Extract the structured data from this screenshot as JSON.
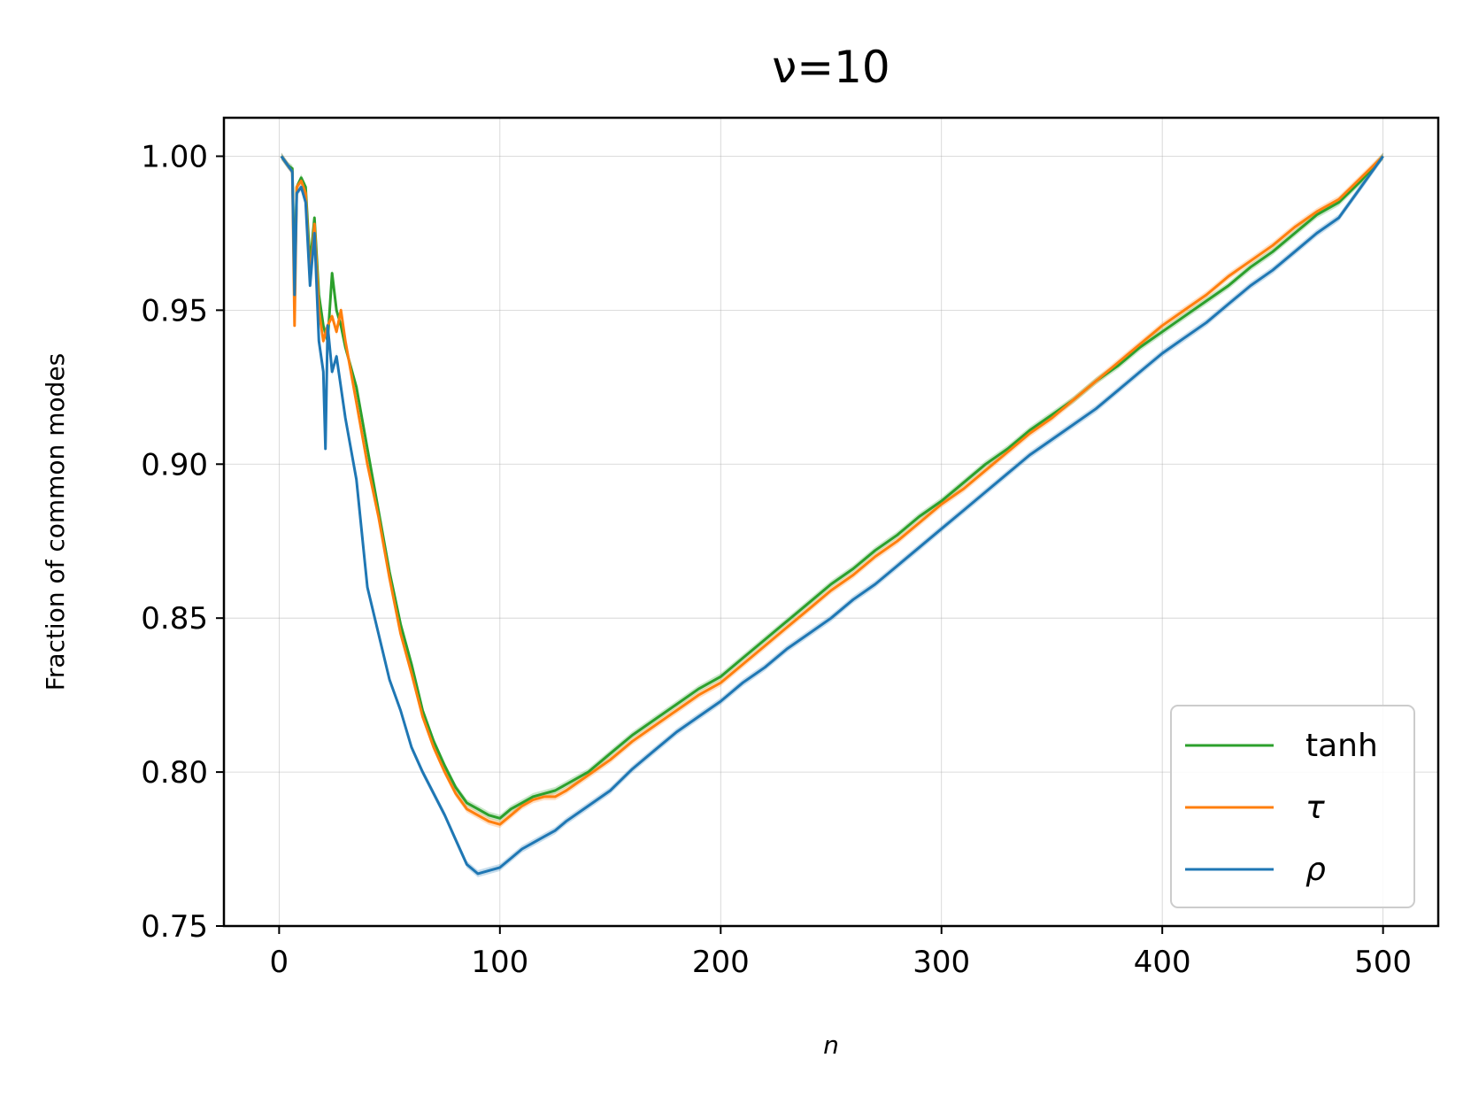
{
  "chart_data": {
    "type": "line",
    "title": "ν=10",
    "xlabel": "n",
    "ylabel": "Fraction of common modes",
    "xlim": [
      -25,
      525
    ],
    "ylim": [
      0.75,
      1.0125
    ],
    "xticks": [
      0,
      100,
      200,
      300,
      400,
      500
    ],
    "yticks": [
      0.75,
      0.8,
      0.85,
      0.9,
      0.95,
      1.0
    ],
    "xtick_labels": [
      "0",
      "100",
      "200",
      "300",
      "400",
      "500"
    ],
    "ytick_labels": [
      "0.75",
      "0.80",
      "0.85",
      "0.90",
      "0.95",
      "1.00"
    ],
    "grid": true,
    "legend_position": "lower-right",
    "series": [
      {
        "name": "tanh",
        "color": "#2ca02c",
        "points": [
          [
            1,
            1.0
          ],
          [
            4,
            0.997
          ],
          [
            6,
            0.996
          ],
          [
            7,
            0.96
          ],
          [
            8,
            0.99
          ],
          [
            10,
            0.993
          ],
          [
            12,
            0.99
          ],
          [
            14,
            0.965
          ],
          [
            16,
            0.98
          ],
          [
            18,
            0.955
          ],
          [
            20,
            0.945
          ],
          [
            22,
            0.94
          ],
          [
            24,
            0.962
          ],
          [
            26,
            0.95
          ],
          [
            28,
            0.945
          ],
          [
            30,
            0.938
          ],
          [
            35,
            0.925
          ],
          [
            40,
            0.905
          ],
          [
            45,
            0.885
          ],
          [
            50,
            0.865
          ],
          [
            55,
            0.848
          ],
          [
            60,
            0.835
          ],
          [
            65,
            0.82
          ],
          [
            70,
            0.81
          ],
          [
            75,
            0.802
          ],
          [
            80,
            0.795
          ],
          [
            85,
            0.79
          ],
          [
            90,
            0.788
          ],
          [
            95,
            0.786
          ],
          [
            100,
            0.785
          ],
          [
            105,
            0.788
          ],
          [
            110,
            0.79
          ],
          [
            115,
            0.792
          ],
          [
            120,
            0.793
          ],
          [
            125,
            0.794
          ],
          [
            130,
            0.796
          ],
          [
            140,
            0.8
          ],
          [
            150,
            0.806
          ],
          [
            160,
            0.812
          ],
          [
            170,
            0.817
          ],
          [
            180,
            0.822
          ],
          [
            190,
            0.827
          ],
          [
            200,
            0.831
          ],
          [
            210,
            0.837
          ],
          [
            220,
            0.843
          ],
          [
            230,
            0.849
          ],
          [
            240,
            0.855
          ],
          [
            250,
            0.861
          ],
          [
            260,
            0.866
          ],
          [
            270,
            0.872
          ],
          [
            280,
            0.877
          ],
          [
            290,
            0.883
          ],
          [
            300,
            0.888
          ],
          [
            310,
            0.894
          ],
          [
            320,
            0.9
          ],
          [
            330,
            0.905
          ],
          [
            340,
            0.911
          ],
          [
            350,
            0.916
          ],
          [
            360,
            0.921
          ],
          [
            370,
            0.927
          ],
          [
            380,
            0.932
          ],
          [
            390,
            0.938
          ],
          [
            400,
            0.943
          ],
          [
            410,
            0.948
          ],
          [
            420,
            0.953
          ],
          [
            430,
            0.958
          ],
          [
            440,
            0.964
          ],
          [
            450,
            0.969
          ],
          [
            460,
            0.975
          ],
          [
            470,
            0.981
          ],
          [
            480,
            0.985
          ],
          [
            490,
            0.992
          ],
          [
            500,
            1.0
          ]
        ]
      },
      {
        "name": "τ",
        "color": "#ff7f0e",
        "points": [
          [
            1,
            1.0
          ],
          [
            4,
            0.997
          ],
          [
            6,
            0.995
          ],
          [
            7,
            0.945
          ],
          [
            8,
            0.99
          ],
          [
            10,
            0.992
          ],
          [
            12,
            0.988
          ],
          [
            14,
            0.96
          ],
          [
            16,
            0.978
          ],
          [
            18,
            0.95
          ],
          [
            20,
            0.94
          ],
          [
            22,
            0.945
          ],
          [
            24,
            0.948
          ],
          [
            26,
            0.943
          ],
          [
            28,
            0.95
          ],
          [
            30,
            0.94
          ],
          [
            35,
            0.92
          ],
          [
            40,
            0.9
          ],
          [
            45,
            0.883
          ],
          [
            50,
            0.863
          ],
          [
            55,
            0.845
          ],
          [
            60,
            0.832
          ],
          [
            65,
            0.818
          ],
          [
            70,
            0.808
          ],
          [
            75,
            0.8
          ],
          [
            80,
            0.793
          ],
          [
            85,
            0.788
          ],
          [
            90,
            0.786
          ],
          [
            95,
            0.784
          ],
          [
            100,
            0.783
          ],
          [
            105,
            0.786
          ],
          [
            110,
            0.789
          ],
          [
            115,
            0.791
          ],
          [
            120,
            0.792
          ],
          [
            125,
            0.792
          ],
          [
            130,
            0.794
          ],
          [
            140,
            0.799
          ],
          [
            150,
            0.804
          ],
          [
            160,
            0.81
          ],
          [
            170,
            0.815
          ],
          [
            180,
            0.82
          ],
          [
            190,
            0.825
          ],
          [
            200,
            0.829
          ],
          [
            210,
            0.835
          ],
          [
            220,
            0.841
          ],
          [
            230,
            0.847
          ],
          [
            240,
            0.853
          ],
          [
            250,
            0.859
          ],
          [
            260,
            0.864
          ],
          [
            270,
            0.87
          ],
          [
            280,
            0.875
          ],
          [
            290,
            0.881
          ],
          [
            300,
            0.887
          ],
          [
            310,
            0.892
          ],
          [
            320,
            0.898
          ],
          [
            330,
            0.904
          ],
          [
            340,
            0.91
          ],
          [
            350,
            0.915
          ],
          [
            360,
            0.921
          ],
          [
            370,
            0.927
          ],
          [
            380,
            0.933
          ],
          [
            390,
            0.939
          ],
          [
            400,
            0.945
          ],
          [
            410,
            0.95
          ],
          [
            420,
            0.955
          ],
          [
            430,
            0.961
          ],
          [
            440,
            0.966
          ],
          [
            450,
            0.971
          ],
          [
            460,
            0.977
          ],
          [
            470,
            0.982
          ],
          [
            480,
            0.986
          ],
          [
            490,
            0.993
          ],
          [
            500,
            1.0
          ]
        ]
      },
      {
        "name": "ρ",
        "color": "#1f77b4",
        "points": [
          [
            1,
            1.0
          ],
          [
            4,
            0.997
          ],
          [
            6,
            0.995
          ],
          [
            7,
            0.955
          ],
          [
            8,
            0.988
          ],
          [
            10,
            0.99
          ],
          [
            12,
            0.985
          ],
          [
            14,
            0.958
          ],
          [
            16,
            0.975
          ],
          [
            18,
            0.94
          ],
          [
            20,
            0.93
          ],
          [
            21,
            0.905
          ],
          [
            22,
            0.945
          ],
          [
            24,
            0.93
          ],
          [
            26,
            0.935
          ],
          [
            28,
            0.925
          ],
          [
            30,
            0.915
          ],
          [
            35,
            0.895
          ],
          [
            40,
            0.86
          ],
          [
            45,
            0.845
          ],
          [
            50,
            0.83
          ],
          [
            55,
            0.82
          ],
          [
            60,
            0.808
          ],
          [
            65,
            0.8
          ],
          [
            70,
            0.793
          ],
          [
            75,
            0.786
          ],
          [
            80,
            0.778
          ],
          [
            85,
            0.77
          ],
          [
            90,
            0.767
          ],
          [
            95,
            0.768
          ],
          [
            100,
            0.769
          ],
          [
            105,
            0.772
          ],
          [
            110,
            0.775
          ],
          [
            115,
            0.777
          ],
          [
            120,
            0.779
          ],
          [
            125,
            0.781
          ],
          [
            130,
            0.784
          ],
          [
            140,
            0.789
          ],
          [
            150,
            0.794
          ],
          [
            160,
            0.801
          ],
          [
            170,
            0.807
          ],
          [
            180,
            0.813
          ],
          [
            190,
            0.818
          ],
          [
            200,
            0.823
          ],
          [
            210,
            0.829
          ],
          [
            220,
            0.834
          ],
          [
            230,
            0.84
          ],
          [
            240,
            0.845
          ],
          [
            250,
            0.85
          ],
          [
            260,
            0.856
          ],
          [
            270,
            0.861
          ],
          [
            280,
            0.867
          ],
          [
            290,
            0.873
          ],
          [
            300,
            0.879
          ],
          [
            310,
            0.885
          ],
          [
            320,
            0.891
          ],
          [
            330,
            0.897
          ],
          [
            340,
            0.903
          ],
          [
            350,
            0.908
          ],
          [
            360,
            0.913
          ],
          [
            370,
            0.918
          ],
          [
            380,
            0.924
          ],
          [
            390,
            0.93
          ],
          [
            400,
            0.936
          ],
          [
            410,
            0.941
          ],
          [
            420,
            0.946
          ],
          [
            430,
            0.952
          ],
          [
            440,
            0.958
          ],
          [
            450,
            0.963
          ],
          [
            460,
            0.969
          ],
          [
            470,
            0.975
          ],
          [
            480,
            0.98
          ],
          [
            490,
            0.99
          ],
          [
            500,
            1.0
          ]
        ]
      }
    ]
  }
}
